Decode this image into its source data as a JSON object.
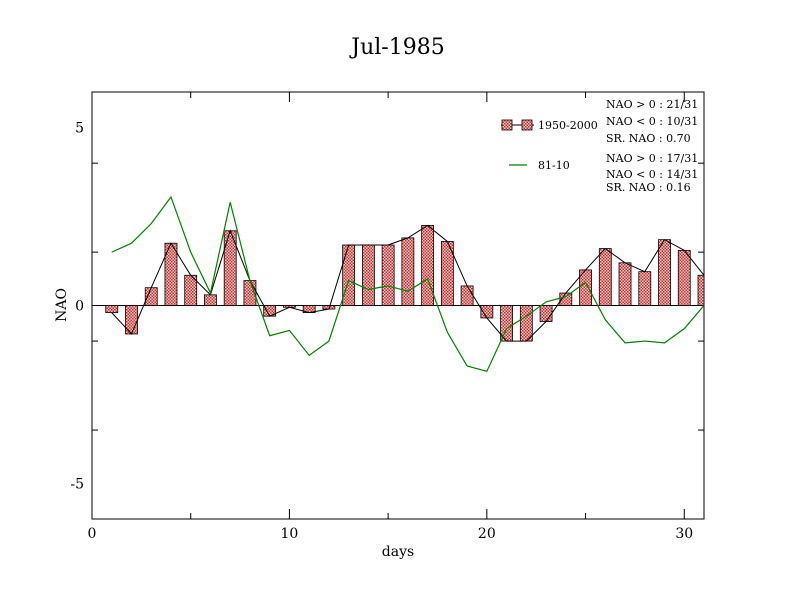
{
  "chart_data": {
    "type": "bar",
    "title": "Jul-1985",
    "xlabel": "days",
    "ylabel": "NAO",
    "xlim": [
      0,
      31
    ],
    "ylim": [
      -6,
      6
    ],
    "x_ticks": [
      0,
      10,
      20,
      30
    ],
    "x_tick_labels": [
      "0",
      "10",
      "20",
      "30"
    ],
    "y_ticks": [
      -5,
      0,
      5
    ],
    "y_tick_labels": [
      "-5",
      "0",
      "5"
    ],
    "grid": false,
    "legend_position": "top-right",
    "days": [
      1,
      2,
      3,
      4,
      5,
      6,
      7,
      8,
      9,
      10,
      11,
      12,
      13,
      14,
      15,
      16,
      17,
      18,
      19,
      20,
      21,
      22,
      23,
      24,
      25,
      26,
      27,
      28,
      29,
      30,
      31
    ],
    "series": [
      {
        "name": "1950-2000",
        "kind": "bar",
        "color": "#e07070",
        "values": [
          -0.2,
          -0.8,
          0.5,
          1.75,
          0.85,
          0.3,
          2.1,
          0.7,
          -0.3,
          -0.05,
          -0.2,
          -0.1,
          1.7,
          1.7,
          1.7,
          1.9,
          2.25,
          1.8,
          0.55,
          -0.35,
          -1.0,
          -1.0,
          -0.45,
          0.35,
          1.0,
          1.6,
          1.2,
          0.95,
          1.85,
          1.55,
          0.85
        ]
      },
      {
        "name": "81-10",
        "kind": "line",
        "color": "#008000",
        "values": [
          1.5,
          1.75,
          2.3,
          3.05,
          1.5,
          0.35,
          2.9,
          0.7,
          -0.85,
          -0.7,
          -1.4,
          -1.0,
          0.7,
          0.45,
          0.55,
          0.4,
          0.75,
          -0.75,
          -1.7,
          -1.85,
          -0.65,
          -0.3,
          0.1,
          0.25,
          0.65,
          -0.4,
          -1.05,
          -1.0,
          -1.05,
          -0.65,
          0.0
        ]
      }
    ],
    "stats_1950_2000": [
      "NAO > 0 : 21/31",
      "NAO < 0 : 10/31",
      "SR. NAO :  0.70"
    ],
    "stats_81_10": [
      "NAO > 0 : 17/31",
      "NAO < 0 : 14/31",
      "SR. NAO :  0.16"
    ]
  }
}
